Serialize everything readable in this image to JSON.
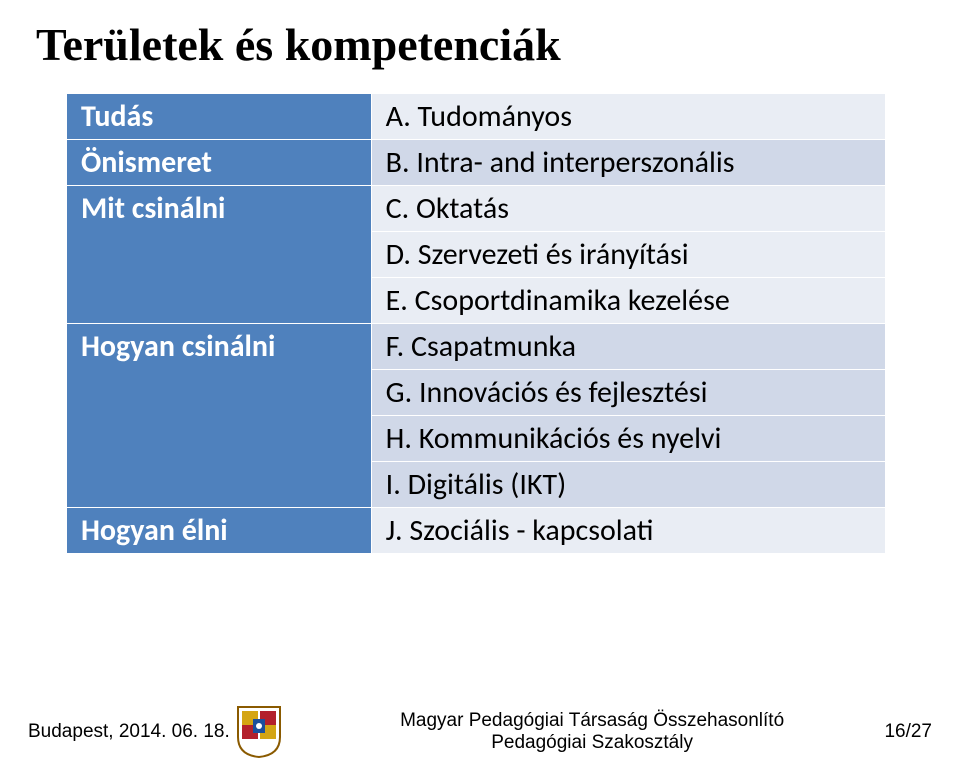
{
  "title": "Területek és kompetenciák",
  "table": {
    "rows": [
      {
        "left": "Tudás",
        "right": "A. Tudományos",
        "alt": false,
        "rowspanLeft": 1
      },
      {
        "left": "Önismeret",
        "right": "B. Intra- and interperszonális",
        "alt": true,
        "rowspanLeft": 1
      },
      {
        "left": "Mit csinálni",
        "right": "C. Oktatás",
        "alt": false,
        "rowspanLeft": 3
      },
      {
        "left": null,
        "right": "D. Szervezeti és irányítási",
        "alt": false
      },
      {
        "left": null,
        "right": "E. Csoportdinamika kezelése",
        "alt": false
      },
      {
        "left": "Hogyan csinálni",
        "right": "F. Csapatmunka",
        "alt": true,
        "rowspanLeft": 4
      },
      {
        "left": null,
        "right": "G. Innovációs és fejlesztési",
        "alt": true
      },
      {
        "left": null,
        "right": "H. Kommunikációs és nyelvi",
        "alt": true
      },
      {
        "left": null,
        "right": "I. Digitális (IKT)",
        "alt": true
      },
      {
        "left": "Hogyan élni",
        "right": "J. Szociális - kapcsolati",
        "alt": false,
        "rowspanLeft": 1
      }
    ]
  },
  "footer": {
    "left": "Budapest, 2014. 06. 18.",
    "centerLine1": "Magyar Pedagógiai Társaság Összehasonlító",
    "centerLine2": "Pedagógiai Szakosztály",
    "right": "16/27"
  },
  "colors": {
    "headerBg": "#4f81bd",
    "rowBg1": "#e9edf4",
    "rowBg2": "#d0d8e8"
  }
}
